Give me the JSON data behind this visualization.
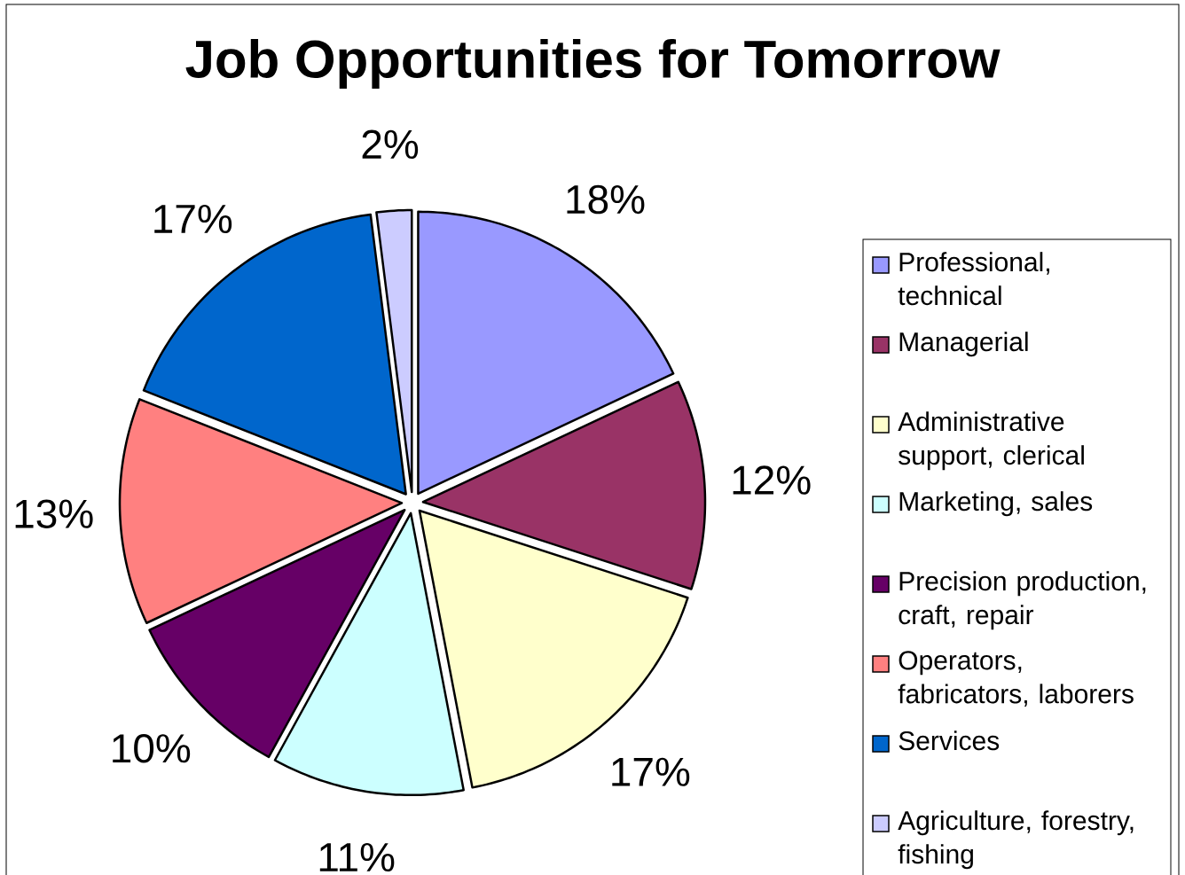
{
  "chart_data": {
    "type": "pie",
    "title": "Job Opportunities for Tomorrow",
    "categories": [
      "Professional, technical",
      "Managerial",
      "Administrative support, clerical",
      "Marketing, sales",
      "Precision production, craft, repair",
      "Operators, fabricators, laborers",
      "Services",
      "Agriculture, forestry, fishing"
    ],
    "values": [
      18,
      12,
      17,
      11,
      10,
      13,
      17,
      2
    ],
    "value_labels": [
      "18%",
      "12%",
      "17%",
      "11%",
      "10%",
      "13%",
      "17%",
      "2%"
    ],
    "colors": [
      "#9999ff",
      "#993366",
      "#ffffcc",
      "#ccffff",
      "#660066",
      "#ff8080",
      "#0066cc",
      "#ccccff"
    ],
    "legend": "right"
  }
}
